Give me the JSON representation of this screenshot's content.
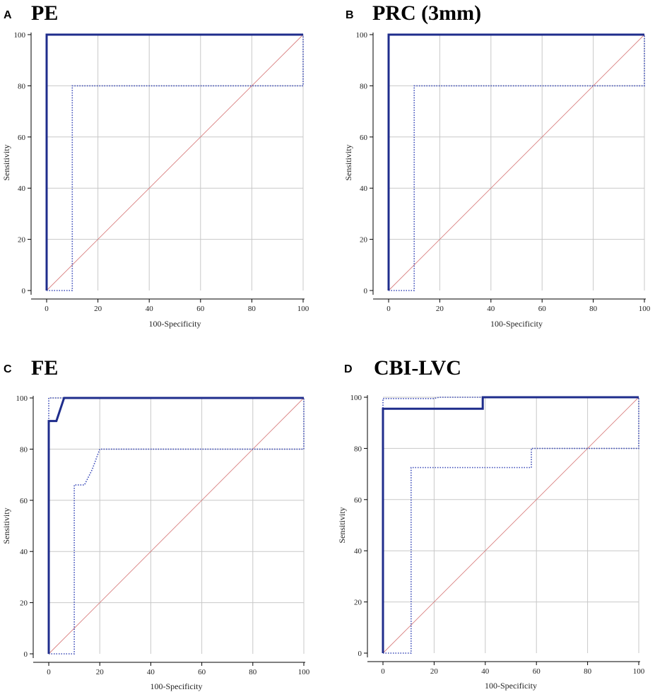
{
  "chart_data": [
    {
      "type": "line",
      "panel": "A",
      "title": "PE",
      "xlabel": "100-Specificity",
      "ylabel": "Sensitivity",
      "xlim": [
        0,
        100
      ],
      "ylim": [
        0,
        100
      ],
      "x_ticks": [
        0,
        20,
        40,
        60,
        80,
        100
      ],
      "y_ticks": [
        0,
        20,
        40,
        60,
        80,
        100
      ],
      "grid": true,
      "colors": {
        "roc": "#1f2d8c",
        "ci": "#3a4ab8",
        "reference": "#d98080"
      },
      "series": [
        {
          "role": "roc",
          "style": "solid",
          "points": [
            [
              0,
              0
            ],
            [
              0,
              100
            ],
            [
              100,
              100
            ]
          ]
        },
        {
          "role": "ci-upper",
          "style": "dotted",
          "points": [
            [
              0,
              0
            ],
            [
              0,
              100
            ],
            [
              100,
              100
            ]
          ]
        },
        {
          "role": "ci-lower",
          "style": "dotted",
          "points": [
            [
              0,
              0
            ],
            [
              10,
              0
            ],
            [
              10,
              80
            ],
            [
              100,
              80
            ],
            [
              100,
              100
            ]
          ]
        },
        {
          "role": "reference",
          "style": "thin",
          "points": [
            [
              0,
              0
            ],
            [
              100,
              100
            ]
          ]
        }
      ]
    },
    {
      "type": "line",
      "panel": "B",
      "title": "PRC (3mm)",
      "xlabel": "100-Specificity",
      "ylabel": "Sensitivity",
      "xlim": [
        0,
        100
      ],
      "ylim": [
        0,
        100
      ],
      "x_ticks": [
        0,
        20,
        40,
        60,
        80,
        100
      ],
      "y_ticks": [
        0,
        20,
        40,
        60,
        80,
        100
      ],
      "grid": true,
      "colors": {
        "roc": "#1f2d8c",
        "ci": "#3a4ab8",
        "reference": "#d98080"
      },
      "series": [
        {
          "role": "roc",
          "style": "solid",
          "points": [
            [
              0,
              0
            ],
            [
              0,
              100
            ],
            [
              100,
              100
            ]
          ]
        },
        {
          "role": "ci-upper",
          "style": "dotted",
          "points": [
            [
              0,
              0
            ],
            [
              0,
              100
            ],
            [
              100,
              100
            ]
          ]
        },
        {
          "role": "ci-lower",
          "style": "dotted",
          "points": [
            [
              0,
              0
            ],
            [
              10,
              0
            ],
            [
              10,
              80
            ],
            [
              100,
              80
            ],
            [
              100,
              100
            ]
          ]
        },
        {
          "role": "reference",
          "style": "thin",
          "points": [
            [
              0,
              0
            ],
            [
              100,
              100
            ]
          ]
        }
      ]
    },
    {
      "type": "line",
      "panel": "C",
      "title": "FE",
      "xlabel": "100-Specificity",
      "ylabel": "Sensitivity",
      "xlim": [
        0,
        100
      ],
      "ylim": [
        0,
        100
      ],
      "x_ticks": [
        0,
        20,
        40,
        60,
        80,
        100
      ],
      "y_ticks": [
        0,
        20,
        40,
        60,
        80,
        100
      ],
      "grid": true,
      "colors": {
        "roc": "#1f2d8c",
        "ci": "#3a4ab8",
        "reference": "#d98080"
      },
      "series": [
        {
          "role": "roc",
          "style": "solid",
          "points": [
            [
              0,
              0
            ],
            [
              0,
              91
            ],
            [
              3,
              91
            ],
            [
              6,
              100
            ],
            [
              100,
              100
            ]
          ]
        },
        {
          "role": "ci-upper",
          "style": "dotted",
          "points": [
            [
              0,
              0
            ],
            [
              0,
              100
            ],
            [
              100,
              100
            ]
          ]
        },
        {
          "role": "ci-lower",
          "style": "dotted",
          "points": [
            [
              0,
              0
            ],
            [
              10,
              0
            ],
            [
              10,
              66
            ],
            [
              14,
              66
            ],
            [
              17,
              72
            ],
            [
              20,
              80
            ],
            [
              100,
              80
            ],
            [
              100,
              100
            ]
          ]
        },
        {
          "role": "reference",
          "style": "thin",
          "points": [
            [
              0,
              0
            ],
            [
              100,
              100
            ]
          ]
        }
      ]
    },
    {
      "type": "line",
      "panel": "D",
      "title": "CBI-LVC",
      "xlabel": "100-Specificity",
      "ylabel": "Sensitivity",
      "xlim": [
        0,
        100
      ],
      "ylim": [
        0,
        100
      ],
      "x_ticks": [
        0,
        20,
        40,
        60,
        80,
        100
      ],
      "y_ticks": [
        0,
        20,
        40,
        60,
        80,
        100
      ],
      "grid": true,
      "colors": {
        "roc": "#1f2d8c",
        "ci": "#3a4ab8",
        "reference": "#d98080"
      },
      "series": [
        {
          "role": "roc",
          "style": "solid",
          "points": [
            [
              0,
              0
            ],
            [
              0,
              95.5
            ],
            [
              39,
              95.5
            ],
            [
              39,
              100
            ],
            [
              100,
              100
            ]
          ]
        },
        {
          "role": "ci-upper",
          "style": "dotted",
          "points": [
            [
              0,
              0
            ],
            [
              0,
              99.5
            ],
            [
              20,
              99.5
            ],
            [
              22,
              100
            ],
            [
              100,
              100
            ]
          ]
        },
        {
          "role": "ci-lower",
          "style": "dotted",
          "points": [
            [
              0,
              0
            ],
            [
              11,
              0
            ],
            [
              11,
              72.5
            ],
            [
              58,
              72.5
            ],
            [
              58,
              80
            ],
            [
              100,
              80
            ],
            [
              100,
              100
            ]
          ]
        },
        {
          "role": "reference",
          "style": "thin",
          "points": [
            [
              0,
              0
            ],
            [
              100,
              100
            ]
          ]
        }
      ]
    }
  ]
}
